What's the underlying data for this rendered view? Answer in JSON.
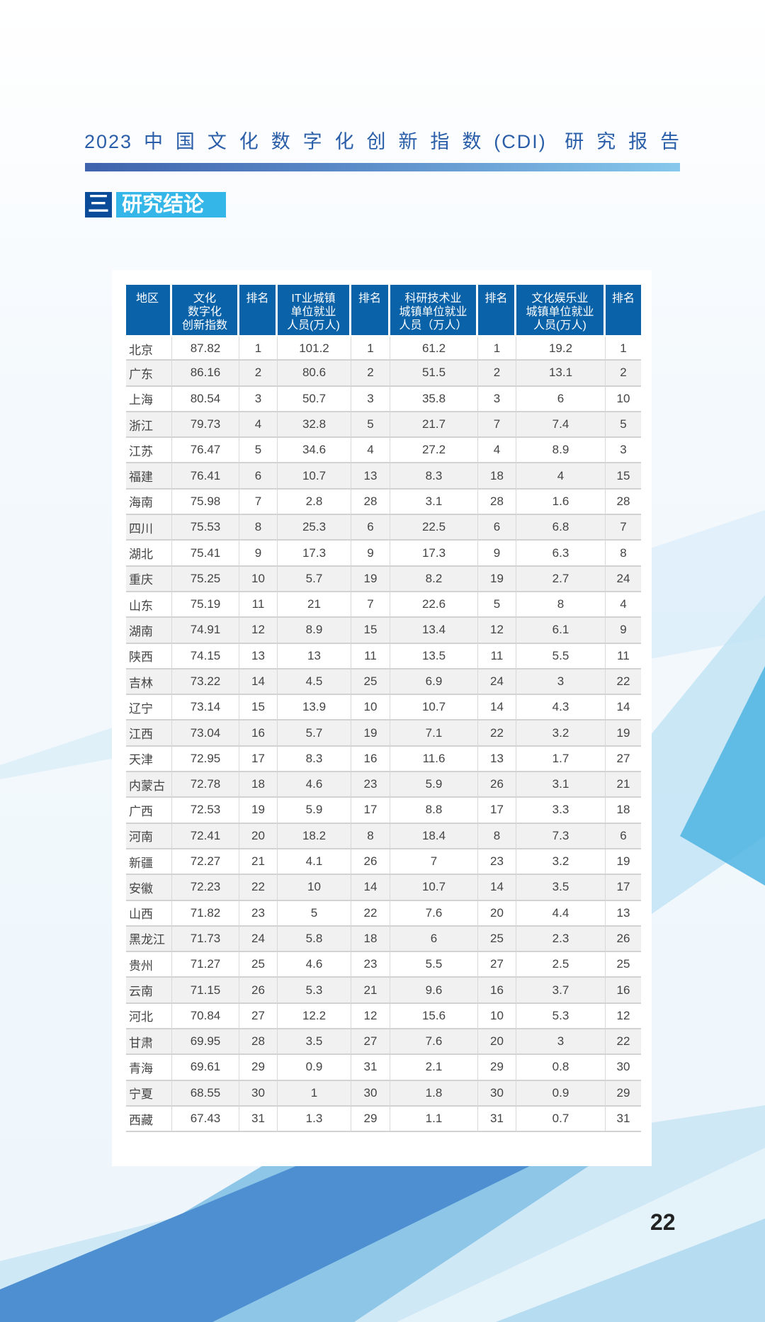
{
  "header": {
    "title": "2023中国文化数字化创新指数(CDI) 研究报告"
  },
  "section": {
    "number": "三",
    "title": "研究结论"
  },
  "table": {
    "columns": [
      "地区",
      "文化\n数字化\n创新指数",
      "排名",
      "IT业城镇\n单位就业\n人员(万人)",
      "排名",
      "科研技术业\n城镇单位就业\n人员（万人）",
      "排名",
      "文化娱乐业\n城镇单位就业\n人员(万人)",
      "排名"
    ],
    "rows": [
      [
        "北京",
        "87.82",
        "1",
        "101.2",
        "1",
        "61.2",
        "1",
        "19.2",
        "1"
      ],
      [
        "广东",
        "86.16",
        "2",
        "80.6",
        "2",
        "51.5",
        "2",
        "13.1",
        "2"
      ],
      [
        "上海",
        "80.54",
        "3",
        "50.7",
        "3",
        "35.8",
        "3",
        "6",
        "10"
      ],
      [
        "浙江",
        "79.73",
        "4",
        "32.8",
        "5",
        "21.7",
        "7",
        "7.4",
        "5"
      ],
      [
        "江苏",
        "76.47",
        "5",
        "34.6",
        "4",
        "27.2",
        "4",
        "8.9",
        "3"
      ],
      [
        "福建",
        "76.41",
        "6",
        "10.7",
        "13",
        "8.3",
        "18",
        "4",
        "15"
      ],
      [
        "海南",
        "75.98",
        "7",
        "2.8",
        "28",
        "3.1",
        "28",
        "1.6",
        "28"
      ],
      [
        "四川",
        "75.53",
        "8",
        "25.3",
        "6",
        "22.5",
        "6",
        "6.8",
        "7"
      ],
      [
        "湖北",
        "75.41",
        "9",
        "17.3",
        "9",
        "17.3",
        "9",
        "6.3",
        "8"
      ],
      [
        "重庆",
        "75.25",
        "10",
        "5.7",
        "19",
        "8.2",
        "19",
        "2.7",
        "24"
      ],
      [
        "山东",
        "75.19",
        "11",
        "21",
        "7",
        "22.6",
        "5",
        "8",
        "4"
      ],
      [
        "湖南",
        "74.91",
        "12",
        "8.9",
        "15",
        "13.4",
        "12",
        "6.1",
        "9"
      ],
      [
        "陕西",
        "74.15",
        "13",
        "13",
        "11",
        "13.5",
        "11",
        "5.5",
        "11"
      ],
      [
        "吉林",
        "73.22",
        "14",
        "4.5",
        "25",
        "6.9",
        "24",
        "3",
        "22"
      ],
      [
        "辽宁",
        "73.14",
        "15",
        "13.9",
        "10",
        "10.7",
        "14",
        "4.3",
        "14"
      ],
      [
        "江西",
        "73.04",
        "16",
        "5.7",
        "19",
        "7.1",
        "22",
        "3.2",
        "19"
      ],
      [
        "天津",
        "72.95",
        "17",
        "8.3",
        "16",
        "11.6",
        "13",
        "1.7",
        "27"
      ],
      [
        "内蒙古",
        "72.78",
        "18",
        "4.6",
        "23",
        "5.9",
        "26",
        "3.1",
        "21"
      ],
      [
        "广西",
        "72.53",
        "19",
        "5.9",
        "17",
        "8.8",
        "17",
        "3.3",
        "18"
      ],
      [
        "河南",
        "72.41",
        "20",
        "18.2",
        "8",
        "18.4",
        "8",
        "7.3",
        "6"
      ],
      [
        "新疆",
        "72.27",
        "21",
        "4.1",
        "26",
        "7",
        "23",
        "3.2",
        "19"
      ],
      [
        "安徽",
        "72.23",
        "22",
        "10",
        "14",
        "10.7",
        "14",
        "3.5",
        "17"
      ],
      [
        "山西",
        "71.82",
        "23",
        "5",
        "22",
        "7.6",
        "20",
        "4.4",
        "13"
      ],
      [
        "黑龙江",
        "71.73",
        "24",
        "5.8",
        "18",
        "6",
        "25",
        "2.3",
        "26"
      ],
      [
        "贵州",
        "71.27",
        "25",
        "4.6",
        "23",
        "5.5",
        "27",
        "2.5",
        "25"
      ],
      [
        "云南",
        "71.15",
        "26",
        "5.3",
        "21",
        "9.6",
        "16",
        "3.7",
        "16"
      ],
      [
        "河北",
        "70.84",
        "27",
        "12.2",
        "12",
        "15.6",
        "10",
        "5.3",
        "12"
      ],
      [
        "甘肃",
        "69.95",
        "28",
        "3.5",
        "27",
        "7.6",
        "20",
        "3",
        "22"
      ],
      [
        "青海",
        "69.61",
        "29",
        "0.9",
        "31",
        "2.1",
        "29",
        "0.8",
        "30"
      ],
      [
        "宁夏",
        "68.55",
        "30",
        "1",
        "30",
        "1.8",
        "30",
        "0.9",
        "29"
      ],
      [
        "西藏",
        "67.43",
        "31",
        "1.3",
        "29",
        "1.1",
        "31",
        "0.7",
        "31"
      ]
    ]
  },
  "footer": {
    "page_number": "22"
  },
  "colors": {
    "title": "#2a5ea8",
    "header_bg": "#0a62a8",
    "section_num_bg": "#0a4c9a",
    "section_title_bg": "#35b6e8"
  }
}
